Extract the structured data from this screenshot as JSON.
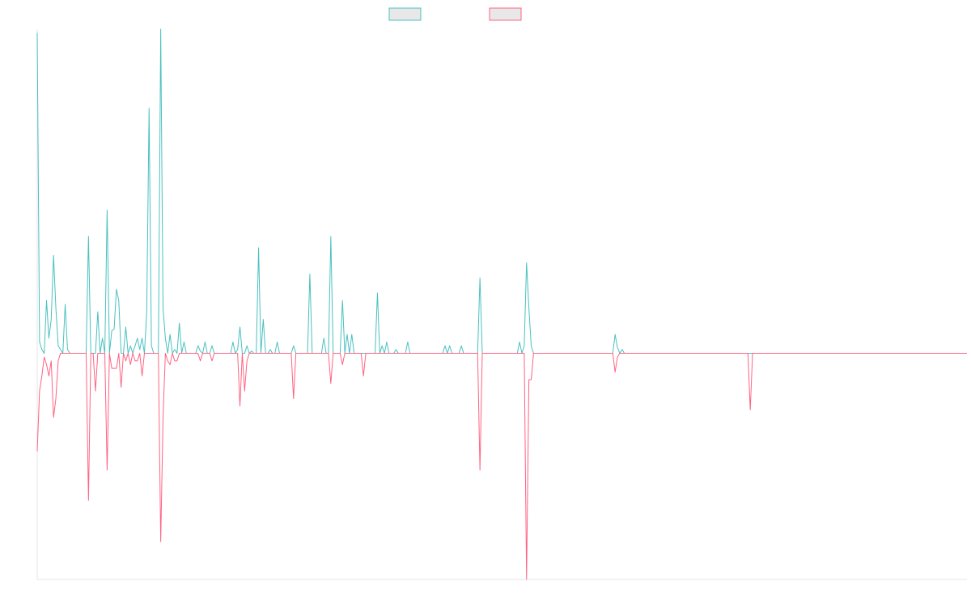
{
  "chart_data": {
    "type": "line",
    "title": "",
    "xlabel": "",
    "ylabel": "",
    "grid": false,
    "legend": "top-center",
    "x_count": 400,
    "ylim": [
      -300,
      430
    ],
    "series": [
      {
        "color": "#4bc0c0",
        "fill": "#e8e8e8",
        "baseline": 0,
        "spikes": [
          [
            0,
            425
          ],
          [
            1,
            15
          ],
          [
            2,
            5
          ],
          [
            4,
            70
          ],
          [
            5,
            20
          ],
          [
            6,
            45
          ],
          [
            7,
            130
          ],
          [
            8,
            60
          ],
          [
            9,
            10
          ],
          [
            10,
            5
          ],
          [
            12,
            65
          ],
          [
            13,
            5
          ],
          [
            22,
            155
          ],
          [
            26,
            55
          ],
          [
            28,
            20
          ],
          [
            30,
            190
          ],
          [
            32,
            30
          ],
          [
            33,
            32
          ],
          [
            34,
            85
          ],
          [
            35,
            70
          ],
          [
            38,
            35
          ],
          [
            40,
            10
          ],
          [
            42,
            10
          ],
          [
            43,
            20
          ],
          [
            44,
            5
          ],
          [
            45,
            20
          ],
          [
            47,
            55
          ],
          [
            48,
            325
          ],
          [
            49,
            10
          ],
          [
            53,
            450
          ],
          [
            54,
            60
          ],
          [
            55,
            20
          ],
          [
            57,
            25
          ],
          [
            59,
            5
          ],
          [
            61,
            40
          ],
          [
            63,
            15
          ],
          [
            69,
            10
          ],
          [
            70,
            3
          ],
          [
            72,
            15
          ],
          [
            75,
            10
          ],
          [
            84,
            15
          ],
          [
            86,
            5
          ],
          [
            87,
            35
          ],
          [
            90,
            10
          ],
          [
            92,
            3
          ],
          [
            95,
            140
          ],
          [
            97,
            45
          ],
          [
            100,
            5
          ],
          [
            103,
            15
          ],
          [
            110,
            10
          ],
          [
            117,
            105
          ],
          [
            123,
            20
          ],
          [
            126,
            155
          ],
          [
            131,
            70
          ],
          [
            133,
            25
          ],
          [
            135,
            25
          ],
          [
            146,
            80
          ],
          [
            148,
            10
          ],
          [
            150,
            15
          ],
          [
            154,
            5
          ],
          [
            159,
            15
          ],
          [
            175,
            10
          ],
          [
            177,
            10
          ],
          [
            182,
            10
          ],
          [
            190,
            100
          ],
          [
            207,
            15
          ],
          [
            209,
            10
          ],
          [
            210,
            120
          ],
          [
            211,
            60
          ],
          [
            212,
            10
          ],
          [
            248,
            25
          ],
          [
            249,
            8
          ],
          [
            251,
            5
          ]
        ]
      },
      {
        "color": "#ff6384",
        "fill": "#e8e8e8",
        "baseline": 0,
        "spikes": [
          [
            0,
            -130
          ],
          [
            1,
            -50
          ],
          [
            2,
            -30
          ],
          [
            3,
            -5
          ],
          [
            4,
            -15
          ],
          [
            5,
            -30
          ],
          [
            6,
            -10
          ],
          [
            7,
            -85
          ],
          [
            8,
            -60
          ],
          [
            9,
            -10
          ],
          [
            22,
            -195
          ],
          [
            25,
            -50
          ],
          [
            30,
            -155
          ],
          [
            32,
            -20
          ],
          [
            33,
            -20
          ],
          [
            34,
            -20
          ],
          [
            36,
            -45
          ],
          [
            38,
            -10
          ],
          [
            40,
            -15
          ],
          [
            42,
            -10
          ],
          [
            43,
            -10
          ],
          [
            45,
            -30
          ],
          [
            53,
            -250
          ],
          [
            54,
            -85
          ],
          [
            56,
            -10
          ],
          [
            57,
            -15
          ],
          [
            59,
            -10
          ],
          [
            60,
            -10
          ],
          [
            70,
            -10
          ],
          [
            75,
            -10
          ],
          [
            87,
            -70
          ],
          [
            89,
            -50
          ],
          [
            90,
            -10
          ],
          [
            110,
            -60
          ],
          [
            126,
            -40
          ],
          [
            131,
            -15
          ],
          [
            140,
            -30
          ],
          [
            190,
            -155
          ],
          [
            210,
            -300
          ],
          [
            211,
            -35
          ],
          [
            212,
            -35
          ],
          [
            248,
            -25
          ],
          [
            249,
            -5
          ],
          [
            306,
            -75
          ]
        ]
      }
    ]
  }
}
